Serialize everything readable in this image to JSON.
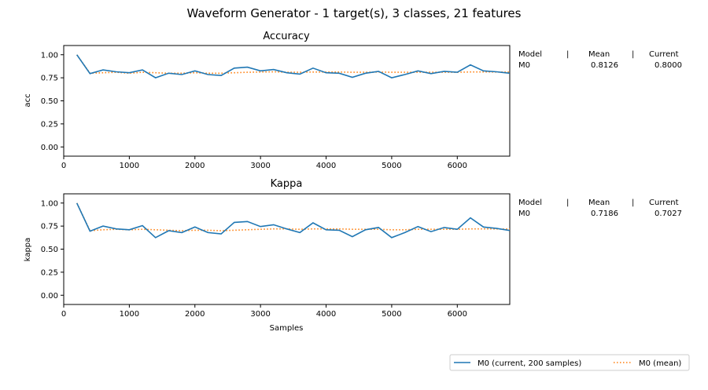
{
  "figure": {
    "title": "Waveform Generator - 1 target(s), 3 classes, 21 features"
  },
  "table_header": {
    "model": "Model",
    "sep": "|",
    "mean": "Mean",
    "current": "Current"
  },
  "legend": {
    "current_label": "M0  (current, 200 samples)",
    "mean_label": "M0 (mean)",
    "current_color": "#1f77b4",
    "mean_color": "#ff7f0e"
  },
  "chart_data": [
    {
      "type": "line",
      "title": "Accuracy",
      "ylabel": "acc",
      "xlabel": "",
      "xlim": [
        0,
        6800
      ],
      "ylim": [
        -0.1,
        1.1
      ],
      "xticks": [
        "0",
        "1000",
        "2000",
        "3000",
        "4000",
        "5000",
        "6000"
      ],
      "xtick_values": [
        0,
        1000,
        2000,
        3000,
        4000,
        5000,
        6000
      ],
      "yticks": [
        "0.00",
        "0.25",
        "0.50",
        "0.75",
        "1.00"
      ],
      "ytick_values": [
        0,
        0.25,
        0.5,
        0.75,
        1.0
      ],
      "x": [
        200,
        400,
        600,
        800,
        1000,
        1200,
        1400,
        1600,
        1800,
        2000,
        2200,
        2400,
        2600,
        2800,
        3000,
        3200,
        3400,
        3600,
        3800,
        4000,
        4200,
        4400,
        4600,
        4800,
        5000,
        5200,
        5400,
        5600,
        5800,
        6000,
        6200,
        6400,
        6600,
        6800
      ],
      "series": [
        {
          "name": "M0  (current, 200 samples)",
          "style": "solid",
          "values": [
            1.0,
            0.795,
            0.835,
            0.815,
            0.805,
            0.835,
            0.75,
            0.8,
            0.785,
            0.825,
            0.785,
            0.775,
            0.855,
            0.865,
            0.825,
            0.84,
            0.805,
            0.79,
            0.855,
            0.805,
            0.8,
            0.755,
            0.8,
            0.82,
            0.75,
            0.785,
            0.825,
            0.795,
            0.82,
            0.81,
            0.89,
            0.825,
            0.815,
            0.8
          ]
        },
        {
          "name": "M0 (mean)",
          "style": "dotted",
          "values": [
            1.0,
            0.8,
            0.805,
            0.81,
            0.8,
            0.81,
            0.805,
            0.8,
            0.8,
            0.805,
            0.8,
            0.8,
            0.805,
            0.81,
            0.812,
            0.815,
            0.81,
            0.81,
            0.812,
            0.812,
            0.812,
            0.81,
            0.81,
            0.812,
            0.81,
            0.81,
            0.81,
            0.81,
            0.81,
            0.81,
            0.813,
            0.813,
            0.8126,
            0.8126
          ]
        }
      ],
      "table": {
        "model": "M0",
        "mean": "0.8126",
        "current": "0.8000"
      }
    },
    {
      "type": "line",
      "title": "Kappa",
      "ylabel": "kappa",
      "xlabel": "Samples",
      "xlim": [
        0,
        6800
      ],
      "ylim": [
        -0.1,
        1.1
      ],
      "xticks": [
        "0",
        "1000",
        "2000",
        "3000",
        "4000",
        "5000",
        "6000"
      ],
      "xtick_values": [
        0,
        1000,
        2000,
        3000,
        4000,
        5000,
        6000
      ],
      "yticks": [
        "0.00",
        "0.25",
        "0.50",
        "0.75",
        "1.00"
      ],
      "ytick_values": [
        0,
        0.25,
        0.5,
        0.75,
        1.0
      ],
      "x": [
        200,
        400,
        600,
        800,
        1000,
        1200,
        1400,
        1600,
        1800,
        2000,
        2200,
        2400,
        2600,
        2800,
        3000,
        3200,
        3400,
        3600,
        3800,
        4000,
        4200,
        4400,
        4600,
        4800,
        5000,
        5200,
        5400,
        5600,
        5800,
        6000,
        6200,
        6400,
        6600,
        6800
      ],
      "series": [
        {
          "name": "M0  (current, 200 samples)",
          "style": "solid",
          "values": [
            1.0,
            0.695,
            0.75,
            0.72,
            0.71,
            0.755,
            0.625,
            0.7,
            0.68,
            0.74,
            0.68,
            0.665,
            0.79,
            0.8,
            0.745,
            0.765,
            0.72,
            0.68,
            0.785,
            0.71,
            0.705,
            0.635,
            0.71,
            0.735,
            0.625,
            0.68,
            0.745,
            0.69,
            0.735,
            0.715,
            0.84,
            0.74,
            0.725,
            0.7027
          ]
        },
        {
          "name": "M0 (mean)",
          "style": "dotted",
          "values": [
            1.0,
            0.7,
            0.71,
            0.715,
            0.71,
            0.715,
            0.71,
            0.705,
            0.7,
            0.705,
            0.705,
            0.7,
            0.705,
            0.71,
            0.715,
            0.72,
            0.72,
            0.715,
            0.72,
            0.72,
            0.72,
            0.715,
            0.715,
            0.715,
            0.71,
            0.71,
            0.715,
            0.715,
            0.715,
            0.715,
            0.72,
            0.72,
            0.7186,
            0.7186
          ]
        }
      ],
      "table": {
        "model": "M0",
        "mean": "0.7186",
        "current": "0.7027"
      }
    }
  ]
}
